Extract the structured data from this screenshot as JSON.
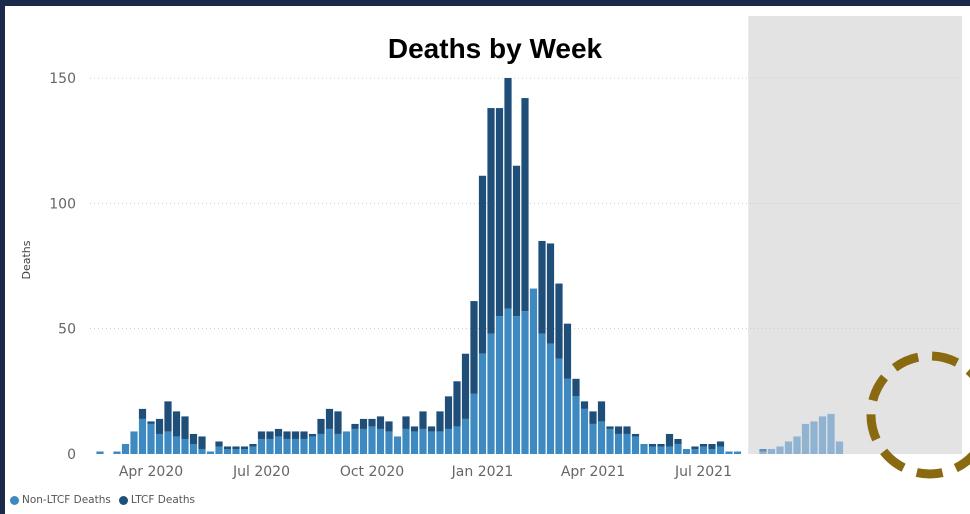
{
  "chart_data": {
    "type": "bar",
    "stacked": true,
    "title": "Deaths by Week",
    "xlabel": "",
    "ylabel": "Deaths",
    "ylim": [
      0,
      150
    ],
    "yticks": [
      0,
      50,
      100,
      150
    ],
    "grid": true,
    "legend_position": "bottom-left",
    "x_tick_labels": [
      {
        "label": "Apr 2020",
        "week": 6
      },
      {
        "label": "Jul 2020",
        "week": 19
      },
      {
        "label": "Oct 2020",
        "week": 32
      },
      {
        "label": "Jan 2021",
        "week": 45
      },
      {
        "label": "Apr 2021",
        "week": 58
      },
      {
        "label": "Jul 2021",
        "week": 71
      }
    ],
    "shaded_region_start_week": 77,
    "series": [
      {
        "name": "Non-LTCF Deaths",
        "color": "#3e8ac0",
        "values": [
          1,
          0,
          1,
          4,
          9,
          14,
          12,
          8,
          9,
          7,
          6,
          4,
          2,
          1,
          3,
          2,
          2,
          2,
          3,
          6,
          6,
          7,
          6,
          6,
          6,
          7,
          8,
          10,
          8,
          9,
          10,
          10,
          11,
          10,
          9,
          7,
          10,
          9,
          10,
          9,
          9,
          10,
          11,
          14,
          24,
          40,
          48,
          55,
          58,
          55,
          57,
          66,
          48,
          44,
          38,
          30,
          23,
          18,
          12,
          13,
          10,
          8,
          8,
          7,
          4,
          3,
          3,
          3,
          4,
          2,
          2,
          3,
          2,
          3,
          1,
          1,
          0,
          0,
          1,
          2,
          3,
          5,
          7,
          12,
          13,
          15,
          16,
          5,
          0
        ]
      },
      {
        "name": "LTCF Deaths",
        "color": "#1f4e79",
        "values": [
          0,
          0,
          0,
          0,
          0,
          4,
          1,
          6,
          12,
          10,
          9,
          4,
          5,
          0,
          2,
          1,
          1,
          1,
          1,
          3,
          3,
          3,
          3,
          3,
          3,
          1,
          6,
          8,
          9,
          0,
          2,
          4,
          3,
          5,
          4,
          0,
          5,
          2,
          7,
          2,
          8,
          13,
          18,
          26,
          37,
          71,
          90,
          83,
          92,
          60,
          85,
          0,
          37,
          40,
          30,
          22,
          7,
          3,
          5,
          8,
          1,
          3,
          3,
          1,
          0,
          1,
          1,
          5,
          2,
          0,
          1,
          1,
          2,
          2,
          0,
          0,
          0,
          0,
          1,
          0,
          0,
          0,
          0,
          0,
          0,
          0,
          0,
          0,
          0
        ]
      }
    ]
  }
}
